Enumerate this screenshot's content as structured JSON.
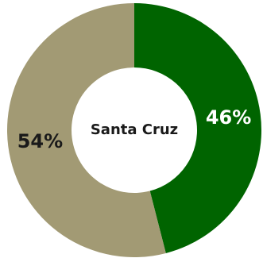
{
  "chart_data": {
    "type": "pie",
    "donut": true,
    "center_text": "Santa Cruz",
    "slices": [
      {
        "label": "46%",
        "value": 46,
        "color": "#006400",
        "label_color": "#ffffff"
      },
      {
        "label": "54%",
        "value": 54,
        "color": "#a29a74",
        "label_color": "#1a1a1a"
      }
    ],
    "start_angle_deg": 0,
    "direction": "clockwise",
    "legend": "none"
  }
}
